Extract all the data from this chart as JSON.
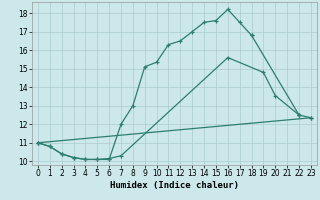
{
  "xlabel": "Humidex (Indice chaleur)",
  "bg_color": "#cce8ea",
  "grid_color": "#aacccc",
  "line_color": "#2e7d6e",
  "xlim": [
    -0.5,
    23.5
  ],
  "ylim": [
    9.8,
    18.6
  ],
  "xticks": [
    0,
    1,
    2,
    3,
    4,
    5,
    6,
    7,
    8,
    9,
    10,
    11,
    12,
    13,
    14,
    15,
    16,
    17,
    18,
    19,
    20,
    21,
    22,
    23
  ],
  "yticks": [
    10,
    11,
    12,
    13,
    14,
    15,
    16,
    17,
    18
  ],
  "line1_x": [
    0,
    1,
    2,
    3,
    4,
    5,
    6,
    7,
    8,
    9,
    10,
    11,
    12,
    13,
    14,
    15,
    16,
    17,
    18
  ],
  "line1_y": [
    11.0,
    10.8,
    10.4,
    10.2,
    10.1,
    10.1,
    10.1,
    12.0,
    13.0,
    15.1,
    15.35,
    16.3,
    16.5,
    17.0,
    17.5,
    17.6,
    18.2,
    17.5,
    16.8
  ],
  "line2_x": [
    0,
    1,
    2,
    3,
    4,
    5,
    6,
    7,
    16,
    19,
    20,
    22
  ],
  "line2_y": [
    11.0,
    10.8,
    10.4,
    10.2,
    10.1,
    10.1,
    10.15,
    10.3,
    15.6,
    14.8,
    13.55,
    12.5
  ],
  "line3_x": [
    0,
    23
  ],
  "line3_y": [
    11.0,
    12.35
  ],
  "line4_x": [
    18,
    22
  ],
  "line4_y": [
    16.8,
    12.5
  ],
  "line5_x": [
    22,
    23
  ],
  "line5_y": [
    12.5,
    12.35
  ]
}
